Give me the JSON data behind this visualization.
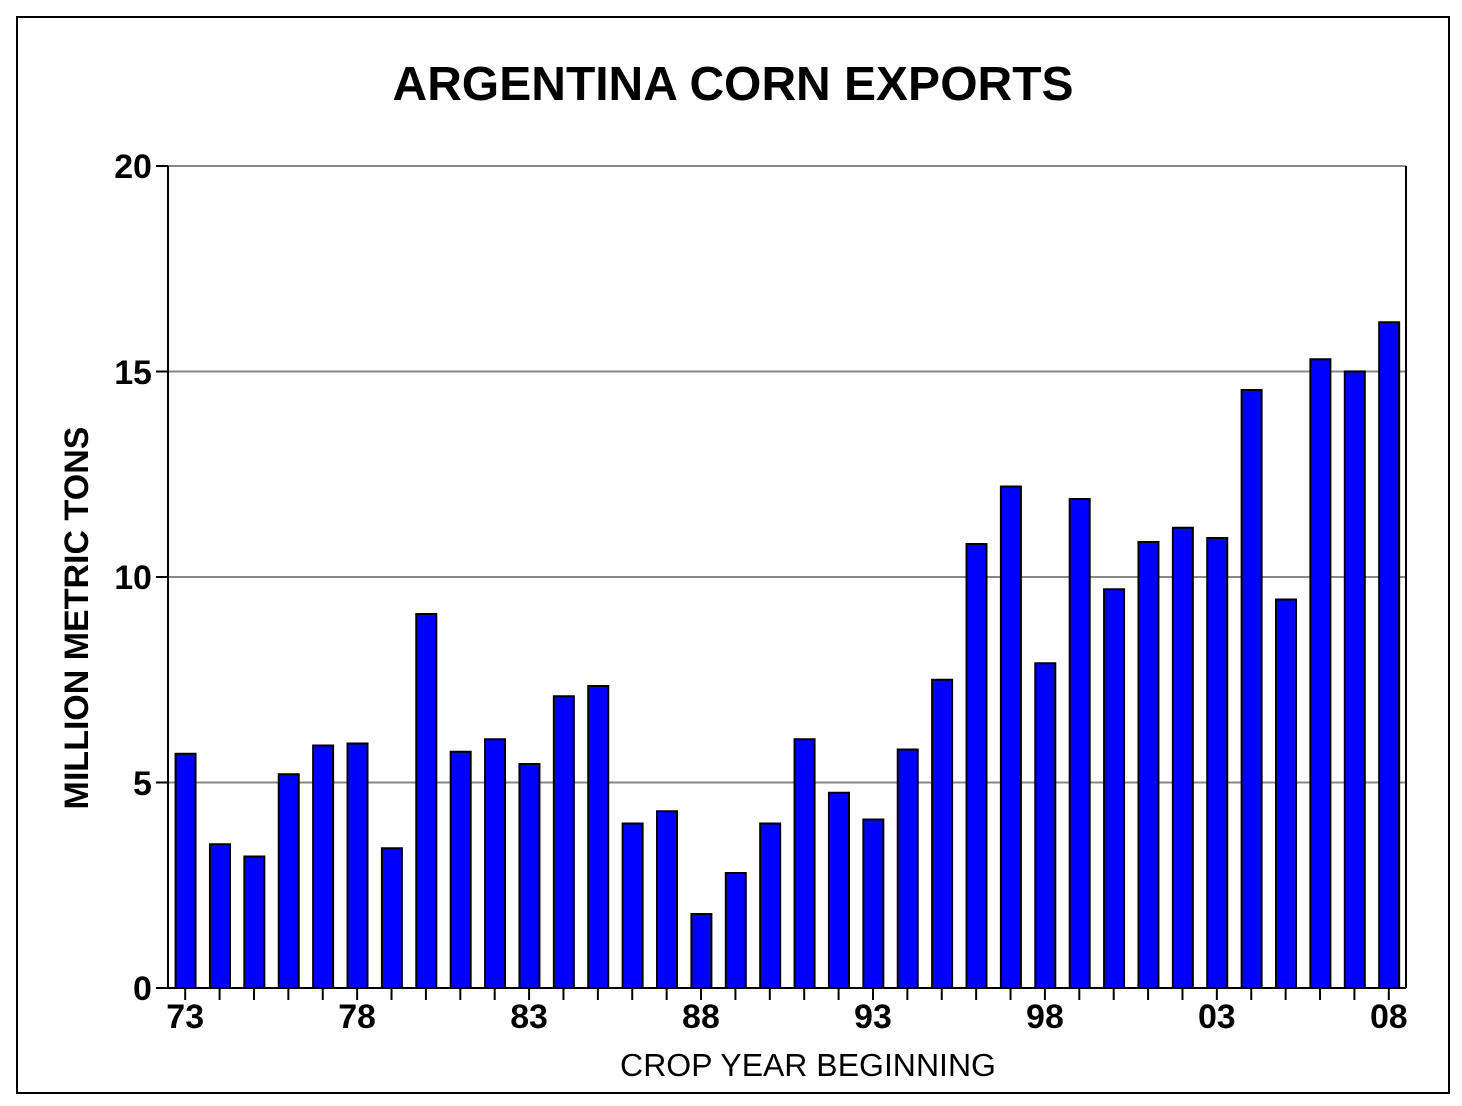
{
  "chart_data": {
    "type": "bar",
    "title": "ARGENTINA CORN EXPORTS",
    "xlabel": "CROP YEAR BEGINNING",
    "ylabel": "MILLION METRIC TONS",
    "categories": [
      "73",
      null,
      null,
      null,
      null,
      "78",
      null,
      null,
      null,
      null,
      "83",
      null,
      null,
      null,
      null,
      "88",
      null,
      null,
      null,
      null,
      "93",
      null,
      null,
      null,
      null,
      "98",
      null,
      null,
      null,
      null,
      "03",
      null,
      null,
      null,
      null,
      "08"
    ],
    "values": [
      5.7,
      3.5,
      3.2,
      5.2,
      5.9,
      5.95,
      3.4,
      9.1,
      5.75,
      6.05,
      5.45,
      7.1,
      7.35,
      4.0,
      4.3,
      1.8,
      2.8,
      4.0,
      6.05,
      4.75,
      4.1,
      5.8,
      7.5,
      10.8,
      12.2,
      7.9,
      11.9,
      9.7,
      10.85,
      11.2,
      10.95,
      14.55,
      9.45,
      15.3,
      15.0,
      16.2
    ],
    "color": "#0000ff",
    "ylim": [
      0,
      20
    ],
    "yticks": [
      0,
      5,
      10,
      15,
      20
    ],
    "grid": "y"
  }
}
